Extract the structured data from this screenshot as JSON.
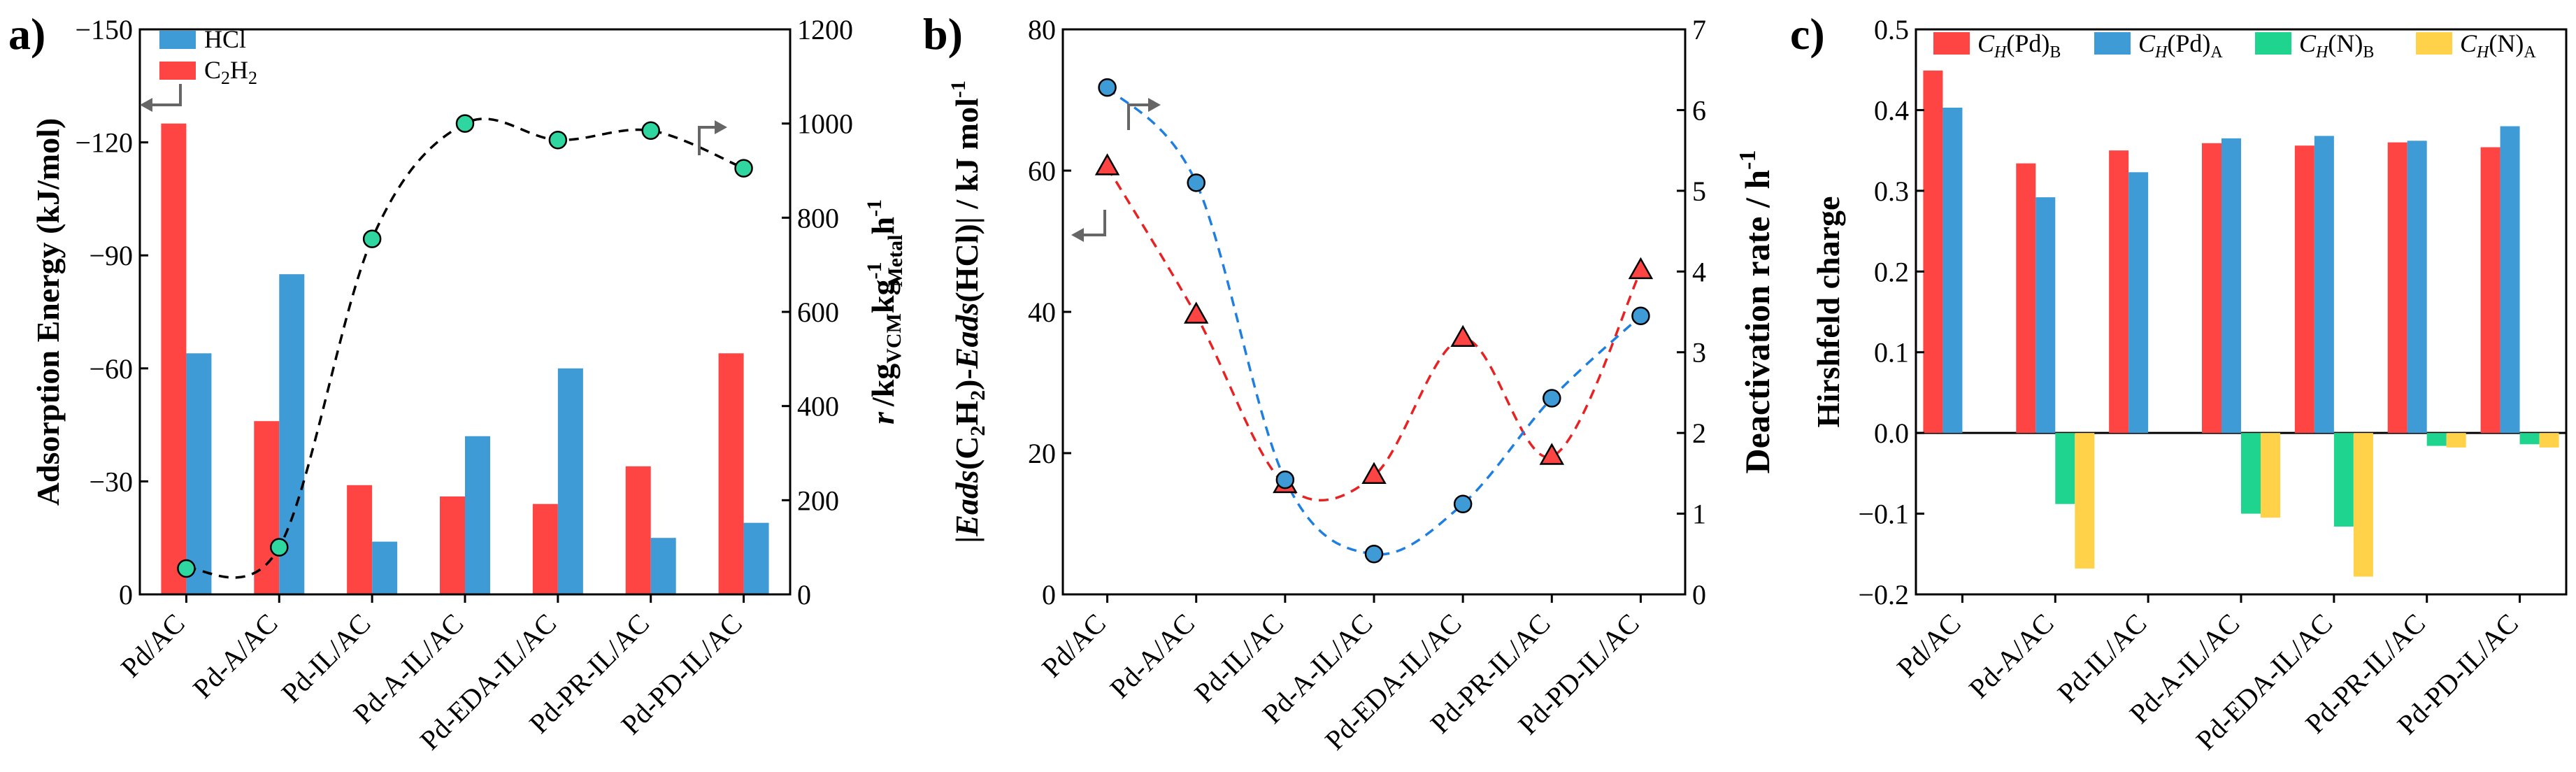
{
  "chart_data": [
    {
      "id": "a",
      "panel_label": "a)",
      "type": "bar",
      "categories": [
        "Pd/AC",
        "Pd-A/AC",
        "Pd-IL/AC",
        "Pd-A-IL/AC",
        "Pd-EDA-IL/AC",
        "Pd-PR-IL/AC",
        "Pd-PD-IL/AC"
      ],
      "series": [
        {
          "name": "HCl",
          "color": "#3F9BD6",
          "values": [
            -64,
            -85,
            -14,
            -42,
            -60,
            -15,
            -19
          ]
        },
        {
          "name": "C2H2",
          "color": "#FF4444",
          "values": [
            -125,
            -46,
            -29,
            -26,
            -24,
            -34,
            -64
          ]
        }
      ],
      "legend": [
        {
          "label": "HCl",
          "color": "#3F9BD6"
        },
        {
          "label": "C",
          "sub1": "2",
          "mid": "H",
          "sub2": "2",
          "color": "#FF4444"
        }
      ],
      "ylabel": "Adsorption Energy (kJ/mol)",
      "ylim": [
        0,
        -150
      ],
      "yticks": [
        "0",
        "-30",
        "-60",
        "-90",
        "-120",
        "-150"
      ],
      "secondary": {
        "type": "scatter",
        "name": "r",
        "color": "#2FD6A0",
        "values": [
          55,
          100,
          755,
          1000,
          965,
          985,
          905
        ],
        "ylim": [
          0,
          1200
        ],
        "yticks": [
          "0",
          "200",
          "400",
          "600",
          "800",
          "1000",
          "1200"
        ],
        "ylabel_r": "r",
        "ylabel_unit": "/kg",
        "ylabel_sub_vcm": "VCM",
        "ylabel_kg": "kg",
        "ylabel_sup1": "-1",
        "ylabel_sub_metal": "Metal",
        "ylabel_h": "h",
        "ylabel_sup2": "-1",
        "fit": "dashed"
      }
    },
    {
      "id": "b",
      "panel_label": "b)",
      "type": "scatter",
      "categories": [
        "Pd/AC",
        "Pd-A/AC",
        "Pd-IL/AC",
        "Pd-A-IL/AC",
        "Pd-EDA-IL/AC",
        "Pd-PR-IL/AC",
        "Pd-PD-IL/AC"
      ],
      "series": [
        {
          "name": "|Eads(C2H2)-Eads(HCl)|",
          "marker": "triangle",
          "color": "#FF4444",
          "fit_color": "#E82222",
          "axis": "left",
          "values": [
            60.5,
            39.5,
            15.5,
            16.8,
            36.2,
            19.5,
            45.8
          ]
        },
        {
          "name": "Deactivation rate",
          "marker": "circle",
          "color": "#3F9BD6",
          "fit_color": "#1F7FE0",
          "axis": "right",
          "values": [
            6.28,
            5.1,
            1.42,
            0.5,
            1.12,
            2.43,
            3.45
          ]
        }
      ],
      "ylim": [
        0,
        80
      ],
      "yticks": [
        "0",
        "20",
        "40",
        "60",
        "80"
      ],
      "ylabel_bar_open": "|",
      "ylabel_eads1": "Eads",
      "ylabel_paren1": "(C",
      "ylabel_sub1": "2",
      "ylabel_h": "H",
      "ylabel_sub2": "2",
      "ylabel_mid": ")-",
      "ylabel_eads2": "Eads",
      "ylabel_tail": "(HCl)| / kJ mol",
      "ylabel_sup": "-1",
      "y2lim": [
        0,
        7
      ],
      "y2ticks": [
        "0",
        "1",
        "2",
        "3",
        "4",
        "5",
        "6",
        "7"
      ],
      "y2label": "Deactivation rate / h",
      "y2label_sup": "-1"
    },
    {
      "id": "c",
      "panel_label": "c)",
      "type": "bar",
      "categories": [
        "Pd/AC",
        "Pd-A/AC",
        "Pd-IL/AC",
        "Pd-A-IL/AC",
        "Pd-EDA-IL/AC",
        "Pd-PR-IL/AC",
        "Pd-PD-IL/AC"
      ],
      "series": [
        {
          "name": "CH(Pd)B",
          "color": "#FF4444",
          "values": [
            0.449,
            0.334,
            0.35,
            0.359,
            0.356,
            0.36,
            0.354
          ]
        },
        {
          "name": "CH(Pd)A",
          "color": "#3F9BD6",
          "values": [
            0.403,
            0.292,
            0.323,
            0.365,
            0.368,
            0.362,
            0.38
          ]
        },
        {
          "name": "CH(N)B",
          "color": "#1ED48E",
          "values": [
            0,
            -0.088,
            0,
            -0.1,
            -0.116,
            -0.016,
            -0.014
          ]
        },
        {
          "name": "CH(N)A",
          "color": "#FFD24A",
          "values": [
            0,
            -0.168,
            0,
            -0.105,
            -0.178,
            -0.018,
            -0.018
          ]
        }
      ],
      "legend": [
        {
          "c": "C",
          "h": "H",
          "open": "(",
          "atom": "Pd",
          "close": ")",
          "sub": "B",
          "color": "#FF4444"
        },
        {
          "c": "C",
          "h": "H",
          "open": "(",
          "atom": "Pd",
          "close": ")",
          "sub": "A",
          "color": "#3F9BD6"
        },
        {
          "c": "C",
          "h": "H",
          "open": "(",
          "atom": "N",
          "close": ")",
          "sub": "B",
          "color": "#1ED48E"
        },
        {
          "c": "C",
          "h": "H",
          "open": "(",
          "atom": "N",
          "close": ")",
          "sub": "A",
          "color": "#FFD24A"
        }
      ],
      "ylabel": "Hirshfeld charge",
      "ylim": [
        -0.2,
        0.5
      ],
      "yticks": [
        "-0.2",
        "-0.1",
        "0.0",
        "0.1",
        "0.2",
        "0.3",
        "0.4",
        "0.5"
      ]
    }
  ]
}
